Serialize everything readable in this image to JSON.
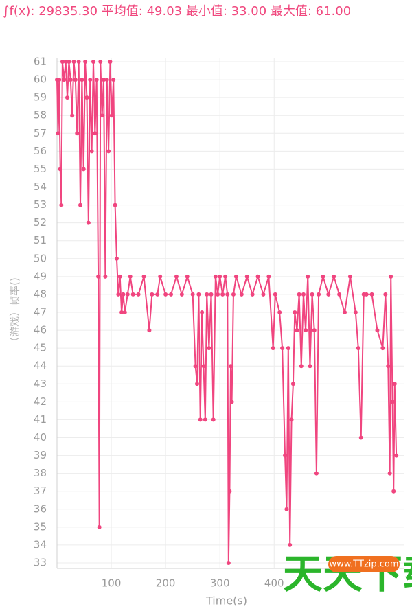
{
  "chart_data": {
    "type": "line",
    "title": "∫f(x): 29835.30 平均值: 49.03 最小值: 33.00 最大值: 61.00",
    "y_label": "（游戏）帧率()",
    "x_label": "Time(s)",
    "watermark": [
      "天天下载",
      "www.TTzip.com"
    ],
    "color": "#f0457f",
    "xlim": [
      0,
      640
    ],
    "ylim": [
      33,
      61
    ],
    "xticks": [
      100,
      200,
      300,
      400
    ],
    "yticks": [
      33,
      34,
      35,
      36,
      37,
      38,
      39,
      40,
      41,
      42,
      43,
      44,
      45,
      46,
      47,
      48,
      49,
      50,
      51,
      52,
      53,
      54,
      55,
      56,
      57,
      58,
      59,
      60,
      61
    ],
    "grid": true,
    "x": [
      0,
      2,
      4,
      6,
      8,
      10,
      13,
      16,
      19,
      22,
      25,
      28,
      31,
      34,
      37,
      40,
      43,
      46,
      49,
      52,
      55,
      58,
      61,
      64,
      67,
      70,
      73,
      76,
      78,
      80,
      83,
      86,
      89,
      92,
      95,
      98,
      101,
      104,
      107,
      110,
      113,
      116,
      119,
      122,
      125,
      130,
      135,
      140,
      150,
      160,
      170,
      175,
      185,
      190,
      200,
      210,
      220,
      230,
      240,
      250,
      255,
      258,
      261,
      264,
      267,
      270,
      273,
      276,
      280,
      284,
      288,
      292,
      296,
      300,
      305,
      310,
      314,
      316,
      318,
      320,
      322,
      325,
      330,
      340,
      350,
      360,
      370,
      380,
      390,
      398,
      402,
      410,
      415,
      420,
      423,
      426,
      429,
      432,
      435,
      438,
      442,
      446,
      450,
      454,
      458,
      462,
      466,
      470,
      474,
      478,
      482,
      490,
      500,
      510,
      520,
      530,
      540,
      550,
      555,
      560,
      565,
      570,
      580,
      590,
      600,
      605,
      610,
      613,
      615,
      618,
      620,
      622,
      625
    ],
    "values": [
      60,
      57,
      60,
      55,
      53,
      61,
      60,
      61,
      59,
      61,
      60,
      58,
      61,
      60,
      57,
      61,
      53,
      60,
      55,
      61,
      59,
      52,
      60,
      56,
      61,
      57,
      60,
      49,
      35,
      61,
      58,
      60,
      49,
      60,
      56,
      61,
      58,
      60,
      53,
      50,
      48,
      49,
      47,
      48,
      47,
      48,
      49,
      48,
      48,
      49,
      46,
      48,
      48,
      49,
      48,
      48,
      49,
      48,
      49,
      48,
      44,
      43,
      48,
      41,
      47,
      44,
      41,
      48,
      45,
      48,
      41,
      49,
      48,
      49,
      48,
      49,
      48,
      33,
      37,
      44,
      42,
      48,
      49,
      48,
      49,
      48,
      49,
      48,
      49,
      45,
      48,
      47,
      45,
      39,
      36,
      45,
      34,
      41,
      43,
      47,
      46,
      48,
      44,
      48,
      46,
      49,
      44,
      48,
      46,
      38,
      48,
      49,
      48,
      49,
      48,
      47,
      49,
      47,
      45,
      40,
      48,
      48,
      48,
      46,
      45,
      48,
      44,
      38,
      49,
      42,
      37,
      43,
      39
    ]
  }
}
